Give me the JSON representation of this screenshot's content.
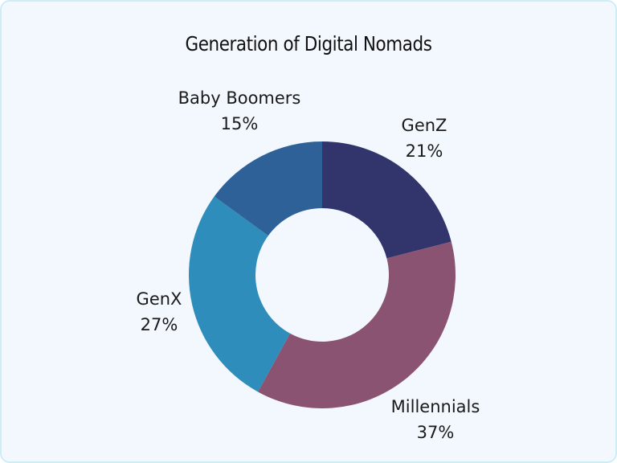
{
  "title": "Generation of Digital Nomads",
  "chart_data": {
    "type": "pie",
    "variant": "donut",
    "title": "Generation of Digital Nomads",
    "categories": [
      "GenZ",
      "Millennials",
      "GenX",
      "Baby Boomers"
    ],
    "values": [
      21,
      37,
      27,
      15
    ],
    "unit": "%",
    "colors": [
      "#31356b",
      "#8a5372",
      "#2e8dba",
      "#2f6199"
    ],
    "start_angle": "12 o'clock",
    "direction": "clockwise",
    "legend": "none (outside labels)",
    "labels": [
      {
        "name": "GenZ",
        "pct": "21%"
      },
      {
        "name": "Millennials",
        "pct": "37%"
      },
      {
        "name": "GenX",
        "pct": "27%"
      },
      {
        "name": "Baby Boomers",
        "pct": "15%"
      }
    ]
  },
  "colors": {
    "background": "#f3f8fe",
    "border": "#cdeef6"
  }
}
